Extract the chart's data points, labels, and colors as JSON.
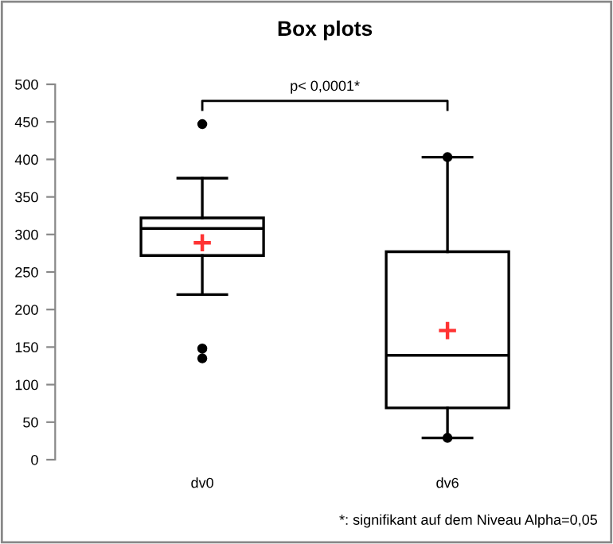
{
  "chart_data": {
    "type": "box",
    "title": "Box plots",
    "categories": [
      "dv0",
      "dv6"
    ],
    "series": [
      {
        "type": "box",
        "color": "#000000",
        "boxes": [
          {
            "low": 220,
            "q1": 272,
            "median": 308,
            "q3": 322,
            "high": 375,
            "outliers": [
              447,
              148,
              135
            ]
          },
          {
            "low": 29,
            "q1": 69,
            "median": 139,
            "q3": 277,
            "high": 403,
            "outliers": [
              403,
              29
            ]
          }
        ]
      },
      {
        "type": "scatter",
        "x": [
          "dv0",
          "dv6"
        ],
        "values": [
          289,
          172
        ],
        "color": "#ff3333",
        "marker": "cross"
      }
    ],
    "ylim": [
      0,
      500
    ],
    "yticks": [
      0,
      50,
      100,
      150,
      200,
      250,
      300,
      350,
      400,
      450,
      500
    ],
    "grid": false,
    "annotations": [
      "p< 0,0001*",
      "*: signifikant auf dem Niveau Alpha=0,05"
    ]
  }
}
